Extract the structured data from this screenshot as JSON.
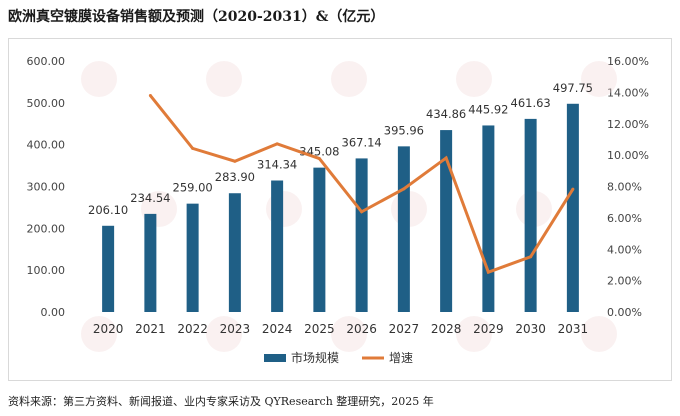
{
  "title": "欧洲真空镀膜设备销售额及预测（2020-2031）&（亿元）",
  "source": "资料来源：第三方资料、新闻报道、业内专家采访及 QYResearch 整理研究，2025 年",
  "chart_data": {
    "type": "bar",
    "categories": [
      "2020",
      "2021",
      "2022",
      "2023",
      "2024",
      "2025",
      "2026",
      "2027",
      "2028",
      "2029",
      "2030",
      "2031"
    ],
    "series": [
      {
        "name": "市场规模",
        "type": "bar",
        "axis": "left",
        "color": "#1f5f86",
        "values": [
          206.1,
          234.54,
          259.0,
          283.9,
          314.34,
          345.08,
          367.14,
          395.96,
          434.86,
          445.92,
          461.63,
          497.75
        ],
        "labels": [
          "206.10",
          "234.54",
          "259.00",
          "283.90",
          "314.34",
          "345.08",
          "367.14",
          "395.96",
          "434.86",
          "445.92",
          "461.63",
          "497.75"
        ]
      },
      {
        "name": "增速",
        "type": "line",
        "axis": "right",
        "color": "#e07b39",
        "values": [
          null,
          13.8,
          10.43,
          9.61,
          10.72,
          9.78,
          6.39,
          7.85,
          9.82,
          2.54,
          3.52,
          7.83
        ]
      }
    ],
    "y_left": {
      "min": 0,
      "max": 600,
      "step": 100,
      "tick_labels": [
        "0.00",
        "100.00",
        "200.00",
        "300.00",
        "400.00",
        "500.00",
        "600.00"
      ]
    },
    "y_right": {
      "min": 0,
      "max": 16,
      "step": 2,
      "tick_labels": [
        "0.00%",
        "2.00%",
        "4.00%",
        "6.00%",
        "8.00%",
        "10.00%",
        "12.00%",
        "14.00%",
        "16.00%"
      ]
    },
    "grid": false,
    "legend_position": "bottom"
  }
}
